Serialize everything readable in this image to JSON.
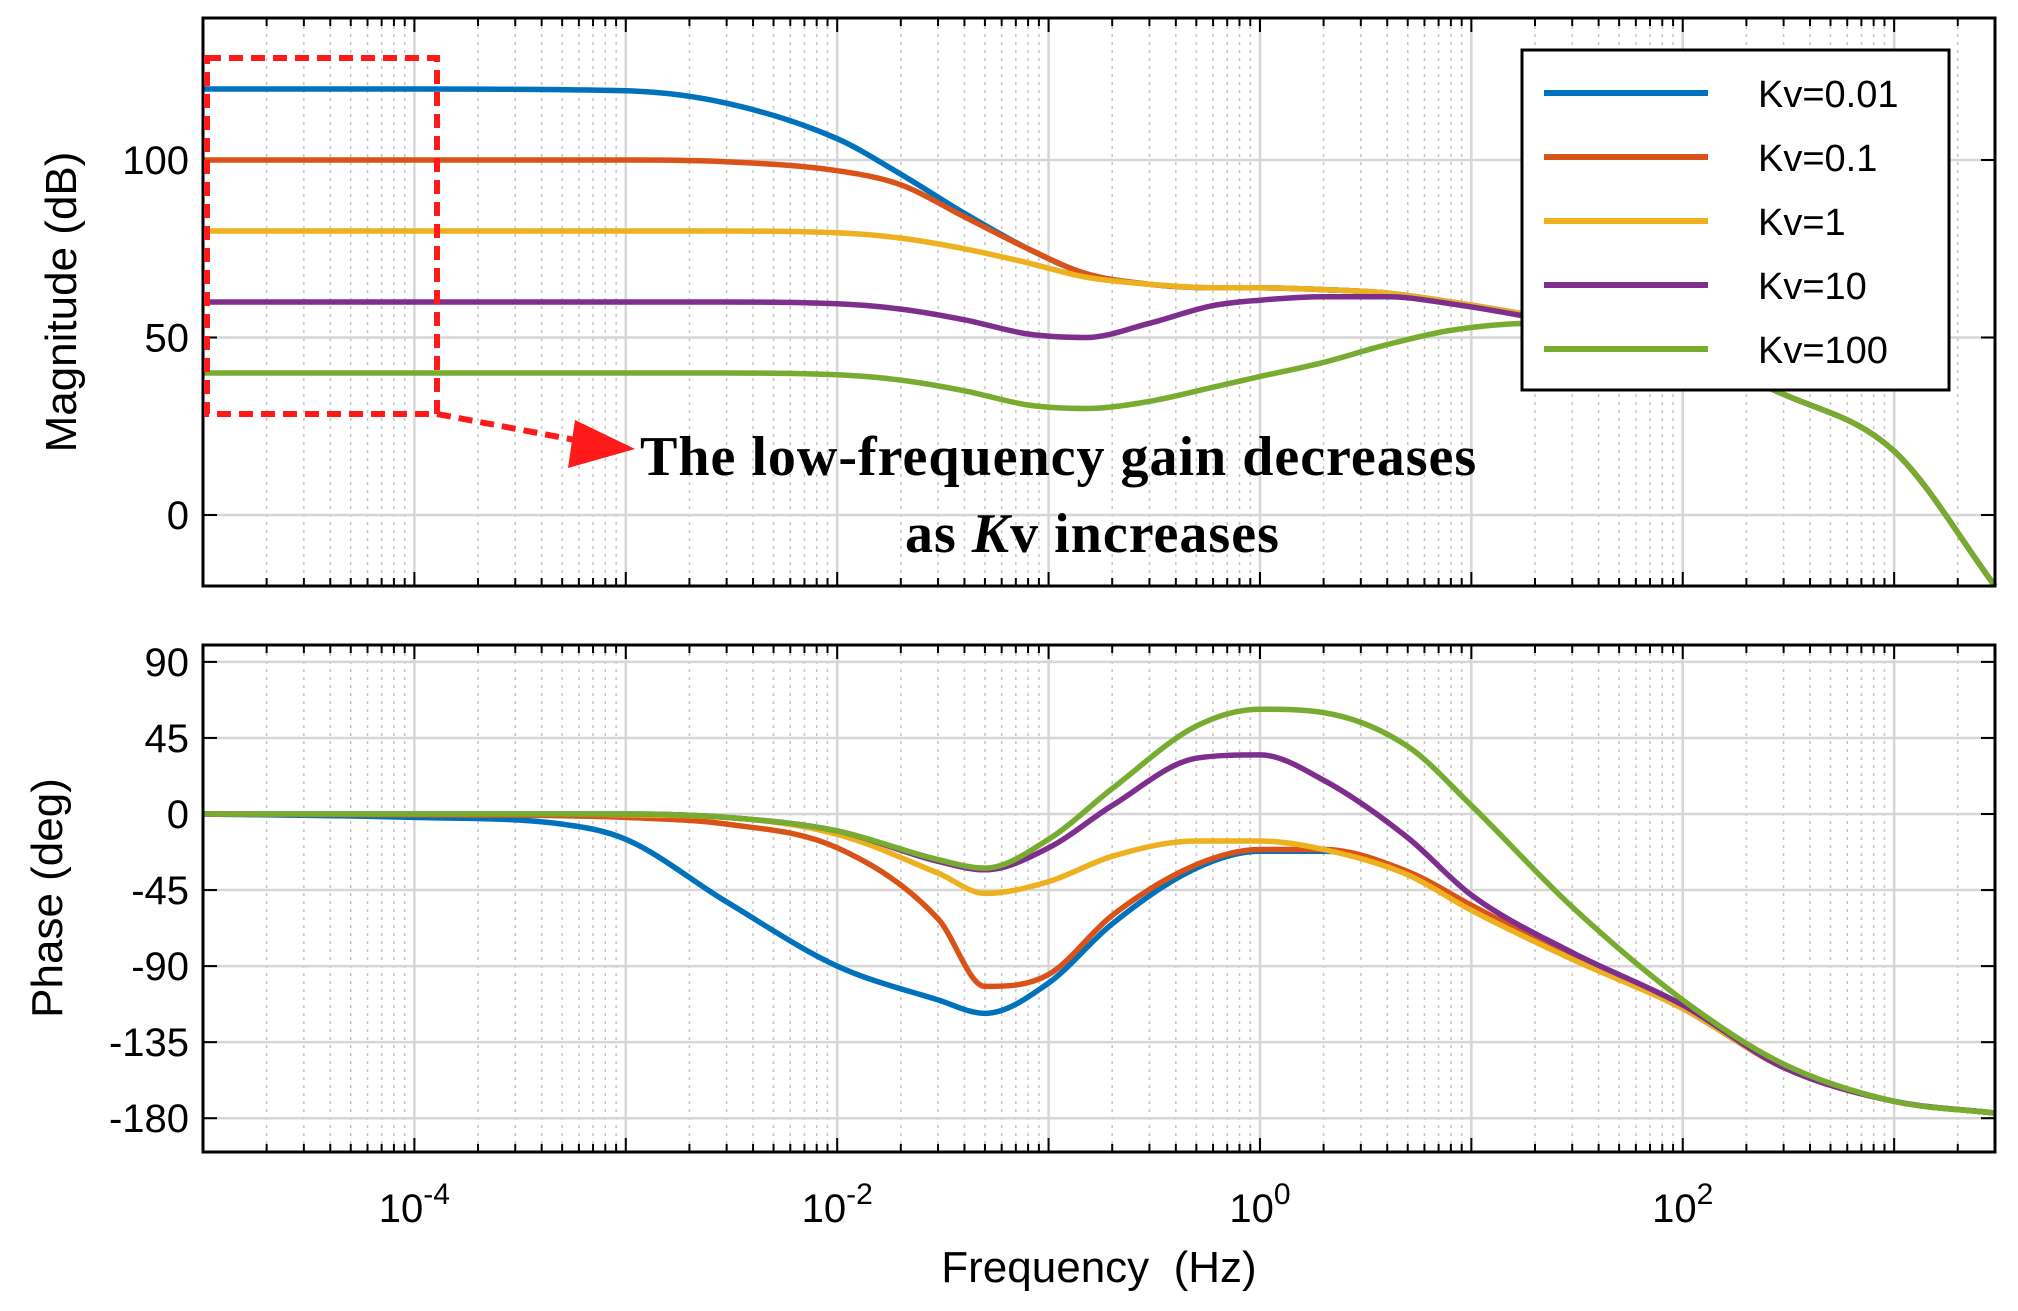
{
  "chart_data": [
    {
      "type": "line",
      "panel": "magnitude",
      "xscale": "log",
      "xlim": [
        1e-05,
        3000
      ],
      "ylim": [
        -20,
        140
      ],
      "yticks": [
        0,
        50,
        100
      ],
      "ytick_labels": [
        "0",
        "50",
        "100"
      ],
      "ylabel": "Magnitude (dB)",
      "xlabel": "",
      "grid": true,
      "legend_position": "top-right",
      "series": [
        {
          "name": "Kv=0.01",
          "color": "#0072BD",
          "x": [
            1e-05,
            0.0001,
            0.001,
            0.003,
            0.01,
            0.02,
            0.04,
            0.08,
            0.15,
            0.3,
            0.6,
            1,
            2,
            4,
            8,
            20,
            50,
            100,
            300,
            1000,
            3000
          ],
          "values": [
            120,
            120,
            119.5,
            116,
            106,
            96,
            85,
            75,
            68,
            65,
            64,
            64,
            63.5,
            62.5,
            60,
            56,
            51,
            45,
            34,
            18,
            -20
          ]
        },
        {
          "name": "Kv=0.1",
          "color": "#D95319",
          "x": [
            1e-05,
            0.0001,
            0.001,
            0.003,
            0.01,
            0.02,
            0.04,
            0.08,
            0.15,
            0.3,
            0.6,
            1,
            2,
            4,
            8,
            20,
            50,
            100,
            300,
            1000,
            3000
          ],
          "values": [
            100,
            100,
            100,
            99.5,
            97,
            93,
            84,
            75,
            68,
            65,
            64,
            64,
            63.5,
            62.5,
            60,
            56,
            51,
            45,
            34,
            18,
            -20
          ]
        },
        {
          "name": "Kv=1",
          "color": "#EDB120",
          "x": [
            1e-05,
            0.0001,
            0.001,
            0.003,
            0.01,
            0.02,
            0.04,
            0.08,
            0.15,
            0.3,
            0.6,
            1,
            2,
            4,
            8,
            20,
            50,
            100,
            300,
            1000,
            3000
          ],
          "values": [
            80,
            80,
            80,
            80,
            79.5,
            78,
            75,
            71,
            67,
            65,
            64,
            64,
            63.5,
            62.5,
            60,
            56,
            51,
            45,
            34,
            18,
            -20
          ]
        },
        {
          "name": "Kv=10",
          "color": "#7E2F8E",
          "x": [
            1e-05,
            0.0001,
            0.001,
            0.003,
            0.01,
            0.02,
            0.04,
            0.08,
            0.15,
            0.3,
            0.6,
            1,
            2,
            4,
            8,
            20,
            50,
            100,
            300,
            1000,
            3000
          ],
          "values": [
            60,
            60,
            60,
            60,
            59.5,
            58,
            55,
            51,
            50,
            54,
            59,
            60.5,
            61.5,
            61.5,
            59.5,
            55.5,
            51,
            45,
            34,
            18,
            -20
          ]
        },
        {
          "name": "Kv=100",
          "color": "#77AC30",
          "x": [
            1e-05,
            0.0001,
            0.001,
            0.003,
            0.01,
            0.02,
            0.04,
            0.08,
            0.15,
            0.3,
            0.6,
            1,
            2,
            4,
            8,
            20,
            50,
            100,
            300,
            1000,
            3000
          ],
          "values": [
            40,
            40,
            40,
            40,
            39.5,
            38,
            35,
            31,
            30,
            32,
            36,
            39,
            43,
            48,
            52,
            54,
            51,
            45,
            34,
            18,
            -20
          ]
        }
      ],
      "annotation": {
        "line1": "The low-frequency gain decreases",
        "line2_prefix": "as ",
        "line2_italic": "K",
        "line2_suffix": "v increases"
      }
    },
    {
      "type": "line",
      "panel": "phase",
      "xscale": "log",
      "xlim": [
        1e-05,
        3000
      ],
      "ylim": [
        -200,
        100
      ],
      "yticks": [
        -180,
        -135,
        -90,
        -45,
        0,
        45,
        90
      ],
      "ytick_labels": [
        "-180",
        "-135",
        "-90",
        "-45",
        "0",
        "45",
        "90"
      ],
      "xticks": [
        0.0001,
        0.01,
        1,
        100
      ],
      "xtick_labels": [
        {
          "base": "10",
          "exp": "-4"
        },
        {
          "base": "10",
          "exp": "-2"
        },
        {
          "base": "10",
          "exp": "0"
        },
        {
          "base": "10",
          "exp": "2"
        }
      ],
      "ylabel": "Phase (deg)",
      "xlabel": "Frequency  (Hz)",
      "grid": true,
      "series": [
        {
          "name": "Kv=0.01",
          "color": "#0072BD",
          "x": [
            1e-05,
            0.0001,
            0.0005,
            0.001,
            0.003,
            0.01,
            0.03,
            0.05,
            0.1,
            0.2,
            0.5,
            1,
            2,
            5,
            10,
            30,
            100,
            300,
            1000,
            3000
          ],
          "values": [
            0,
            -2,
            -6,
            -15,
            -52,
            -90,
            -110,
            -118,
            -100,
            -65,
            -32,
            -22,
            -22,
            -35,
            -55,
            -85,
            -115,
            -150,
            -170,
            -177
          ]
        },
        {
          "name": "Kv=0.1",
          "color": "#D95319",
          "x": [
            1e-05,
            0.0001,
            0.0005,
            0.001,
            0.003,
            0.01,
            0.03,
            0.05,
            0.1,
            0.2,
            0.5,
            1,
            2,
            5,
            10,
            30,
            100,
            300,
            1000,
            3000
          ],
          "values": [
            0,
            -0.5,
            -1,
            -2,
            -6,
            -20,
            -62,
            -102,
            -95,
            -60,
            -30,
            -21,
            -21,
            -34,
            -54,
            -85,
            -115,
            -150,
            -170,
            -177
          ]
        },
        {
          "name": "Kv=1",
          "color": "#EDB120",
          "x": [
            1e-05,
            0.0001,
            0.0005,
            0.001,
            0.003,
            0.01,
            0.03,
            0.05,
            0.1,
            0.2,
            0.5,
            1,
            2,
            5,
            10,
            30,
            100,
            300,
            1000,
            3000
          ],
          "values": [
            0,
            0,
            0,
            -0.5,
            -2,
            -12,
            -35,
            -47,
            -40,
            -25,
            -16,
            -16,
            -21,
            -36,
            -57,
            -86,
            -115,
            -150,
            -170,
            -177
          ]
        },
        {
          "name": "Kv=10",
          "color": "#7E2F8E",
          "x": [
            1e-05,
            0.0001,
            0.0005,
            0.001,
            0.003,
            0.01,
            0.03,
            0.05,
            0.1,
            0.2,
            0.5,
            1,
            2,
            5,
            10,
            30,
            100,
            300,
            1000,
            3000
          ],
          "values": [
            0,
            0,
            0,
            0,
            -2,
            -10,
            -28,
            -33,
            -20,
            5,
            33,
            35,
            20,
            -14,
            -48,
            -82,
            -113,
            -150,
            -170,
            -177
          ]
        },
        {
          "name": "Kv=100",
          "color": "#77AC30",
          "x": [
            1e-05,
            0.0001,
            0.0005,
            0.001,
            0.003,
            0.01,
            0.03,
            0.05,
            0.1,
            0.2,
            0.5,
            1,
            2,
            5,
            10,
            30,
            100,
            300,
            1000,
            3000
          ],
          "values": [
            0,
            0,
            0,
            0,
            -2,
            -10,
            -27,
            -32,
            -15,
            15,
            52,
            62,
            60,
            40,
            5,
            -55,
            -110,
            -148,
            -170,
            -177
          ]
        }
      ]
    }
  ]
}
